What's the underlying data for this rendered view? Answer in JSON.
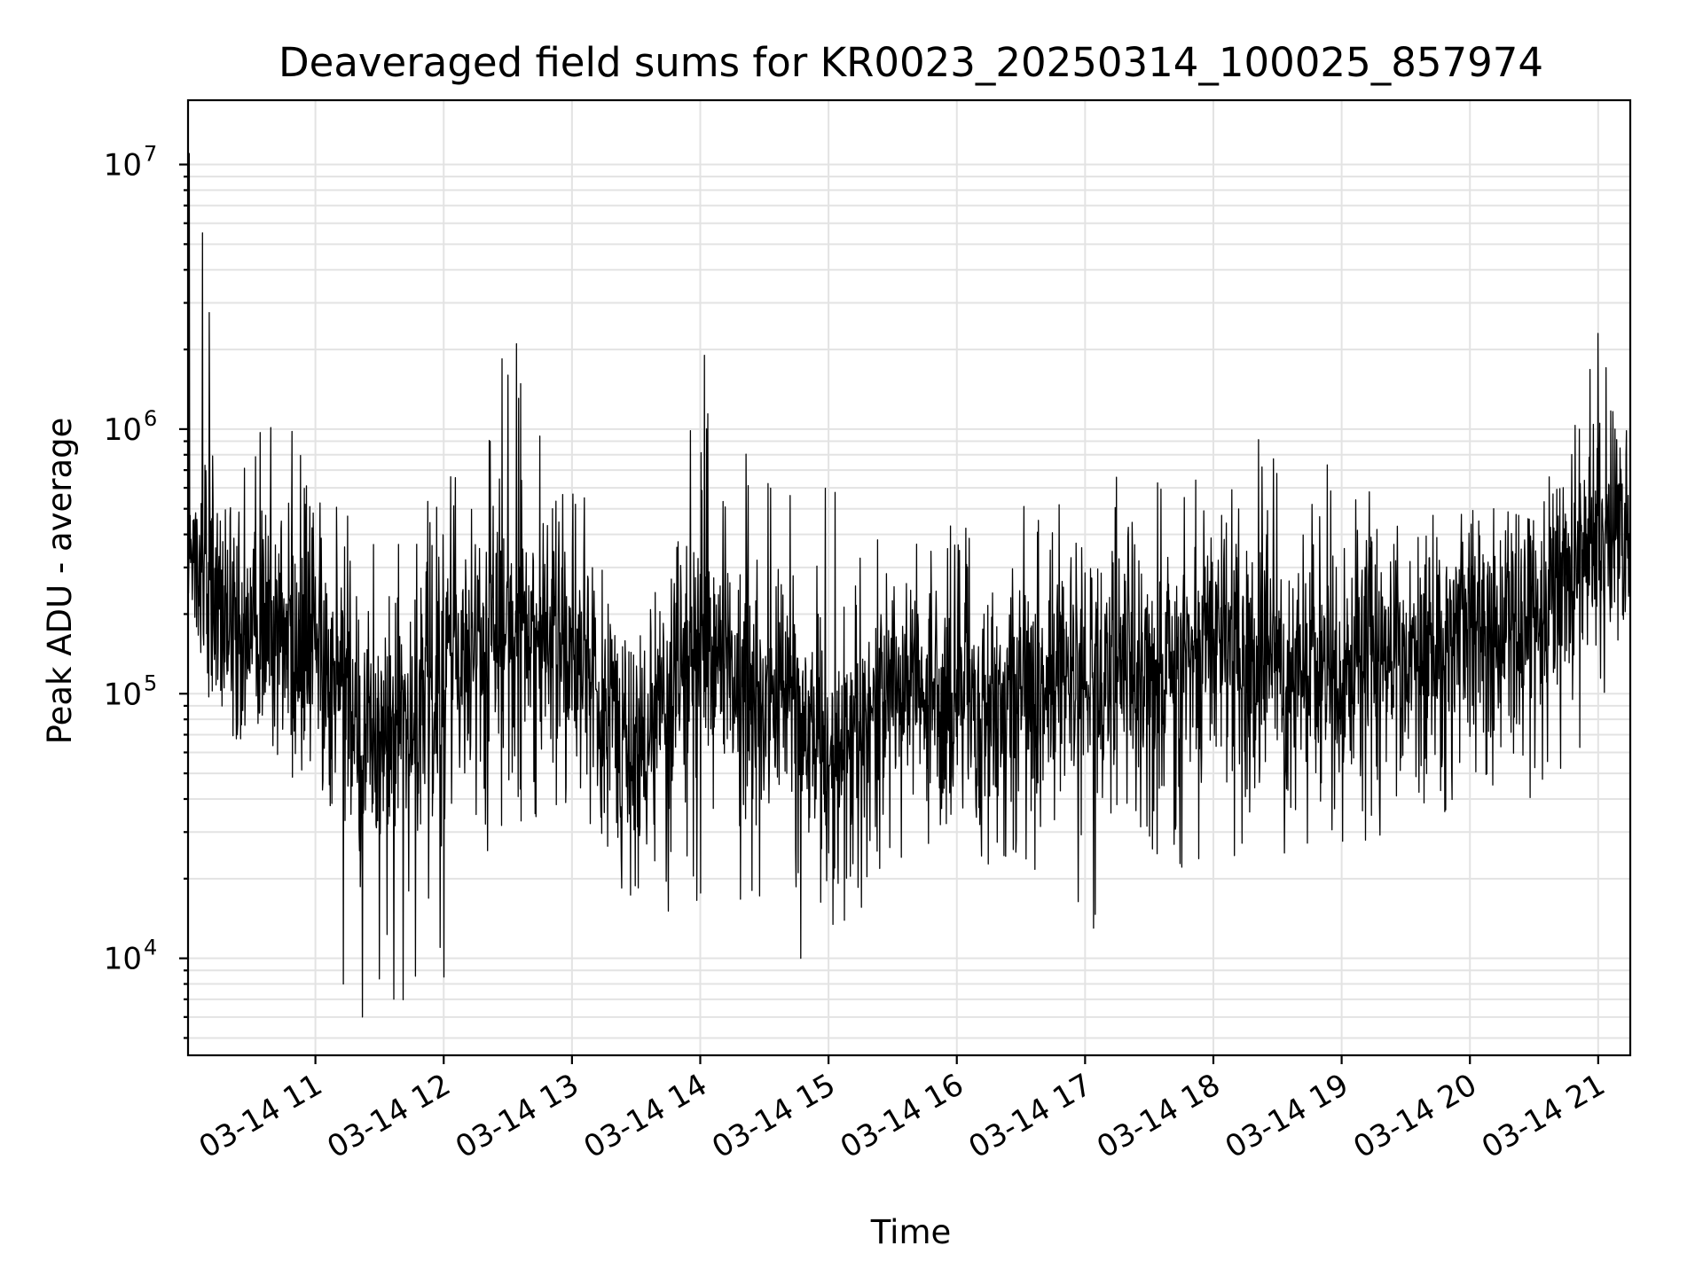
{
  "chart_data": {
    "type": "line",
    "title": "Deaveraged field sums for KR0023_20250314_100025_857974",
    "xlabel": "Time",
    "ylabel": "Peak ADU - average",
    "xscale": "time",
    "xlim": [
      "2025-03-14 10:00:25",
      "2025-03-14 21:15:00"
    ],
    "yscale": "log",
    "ylim": [
      4300,
      17500000
    ],
    "grid": true,
    "x_ticks": [
      "03-14 11",
      "03-14 12",
      "03-14 13",
      "03-14 14",
      "03-14 15",
      "03-14 16",
      "03-14 17",
      "03-14 18",
      "03-14 19",
      "03-14 20",
      "03-14 21"
    ],
    "y_ticks": [
      {
        "base": "10",
        "exp": "4"
      },
      {
        "base": "10",
        "exp": "5"
      },
      {
        "base": "10",
        "exp": "6"
      },
      {
        "base": "10",
        "exp": "7"
      }
    ],
    "series": [
      {
        "color": "#000000",
        "line_width": "thin",
        "x_start": "2025-03-14 10:00:25",
        "x_end": "2025-03-14 21:15:00",
        "y_envelope": [
          {
            "x": "2025-03-14 10:00",
            "y_low": 100000,
            "y_mid": 300000,
            "y_high": 11000000
          },
          {
            "x": "2025-03-14 10:30",
            "y_low": 60000,
            "y_mid": 180000,
            "y_high": 1300000
          },
          {
            "x": "2025-03-14 11:00",
            "y_low": 40000,
            "y_mid": 150000,
            "y_high": 1100000
          },
          {
            "x": "2025-03-14 11:30",
            "y_low": 6000,
            "y_mid": 60000,
            "y_high": 400000
          },
          {
            "x": "2025-03-14 12:00",
            "y_low": 9000,
            "y_mid": 120000,
            "y_high": 700000
          },
          {
            "x": "2025-03-14 12:30",
            "y_low": 35000,
            "y_mid": 180000,
            "y_high": 2100000
          },
          {
            "x": "2025-03-14 13:00",
            "y_low": 25000,
            "y_mid": 150000,
            "y_high": 700000
          },
          {
            "x": "2025-03-14 13:30",
            "y_low": 15000,
            "y_mid": 55000,
            "y_high": 200000
          },
          {
            "x": "2025-03-14 14:00",
            "y_low": 15000,
            "y_mid": 150000,
            "y_high": 1900000
          },
          {
            "x": "2025-03-14 14:30",
            "y_low": 14000,
            "y_mid": 100000,
            "y_high": 1000000
          },
          {
            "x": "2025-03-14 15:00",
            "y_low": 12000,
            "y_mid": 60000,
            "y_high": 700000
          },
          {
            "x": "2025-03-14 15:30",
            "y_low": 20000,
            "y_mid": 100000,
            "y_high": 500000
          },
          {
            "x": "2025-03-14 16:00",
            "y_low": 20000,
            "y_mid": 90000,
            "y_high": 500000
          },
          {
            "x": "2025-03-14 16:30",
            "y_low": 25000,
            "y_mid": 100000,
            "y_high": 700000
          },
          {
            "x": "2025-03-14 17:00",
            "y_low": 13000,
            "y_mid": 120000,
            "y_high": 900000
          },
          {
            "x": "2025-03-14 17:30",
            "y_low": 25000,
            "y_mid": 120000,
            "y_high": 600000
          },
          {
            "x": "2025-03-14 18:00",
            "y_low": 15000,
            "y_mid": 140000,
            "y_high": 1000000
          },
          {
            "x": "2025-03-14 18:30",
            "y_low": 25000,
            "y_mid": 130000,
            "y_high": 900000
          },
          {
            "x": "2025-03-14 19:00",
            "y_low": 25000,
            "y_mid": 130000,
            "y_high": 700000
          },
          {
            "x": "2025-03-14 19:30",
            "y_low": 30000,
            "y_mid": 140000,
            "y_high": 500000
          },
          {
            "x": "2025-03-14 20:00",
            "y_low": 40000,
            "y_mid": 160000,
            "y_high": 550000
          },
          {
            "x": "2025-03-14 20:30",
            "y_low": 40000,
            "y_mid": 180000,
            "y_high": 450000
          },
          {
            "x": "2025-03-14 21:00",
            "y_low": 70000,
            "y_mid": 400000,
            "y_high": 2300000
          },
          {
            "x": "2025-03-14 21:15",
            "y_low": 250000,
            "y_mid": 450000,
            "y_high": 900000
          }
        ],
        "notable_spikes": [
          {
            "x": "2025-03-14 10:01",
            "y": 11000000
          },
          {
            "x": "2025-03-14 12:30",
            "y": 1600000
          },
          {
            "x": "2025-03-14 12:34",
            "y": 2100000
          },
          {
            "x": "2025-03-14 14:02",
            "y": 1900000
          },
          {
            "x": "2025-03-14 21:00",
            "y": 2300000
          },
          {
            "x": "2025-03-14 11:22",
            "y": 6000
          },
          {
            "x": "2025-03-14 11:13",
            "y": 8000
          },
          {
            "x": "2025-03-14 12:00",
            "y": 8500
          },
          {
            "x": "2025-03-14 14:47",
            "y": 10000
          },
          {
            "x": "2025-03-14 17:04",
            "y": 13000
          }
        ]
      }
    ]
  }
}
